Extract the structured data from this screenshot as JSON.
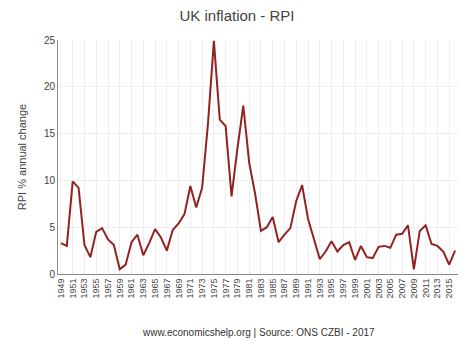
{
  "chart_data": {
    "type": "line",
    "title": "UK inflation - RPI",
    "ylabel": "RPI % annual change",
    "annotations": [
      "www.economicshelp.org | Source: ONS CZBI - 2017"
    ],
    "color": "#922222",
    "grid": true,
    "x": [
      1949,
      1950,
      1951,
      1952,
      1953,
      1954,
      1955,
      1956,
      1957,
      1958,
      1959,
      1960,
      1961,
      1962,
      1963,
      1964,
      1965,
      1966,
      1967,
      1968,
      1969,
      1970,
      1971,
      1972,
      1973,
      1974,
      1975,
      1976,
      1977,
      1978,
      1979,
      1980,
      1981,
      1982,
      1983,
      1984,
      1985,
      1986,
      1987,
      1988,
      1989,
      1990,
      1991,
      1992,
      1993,
      1994,
      1995,
      1996,
      1997,
      1998,
      1999,
      2000,
      2001,
      2002,
      2003,
      2004,
      2005,
      2006,
      2007,
      2008,
      2009,
      2010,
      2011,
      2012,
      2013,
      2014,
      2015,
      2016
    ],
    "values": [
      3.3,
      3.0,
      9.9,
      9.2,
      3.1,
      1.8,
      4.5,
      4.9,
      3.7,
      3.1,
      0.5,
      1.0,
      3.4,
      4.2,
      2.0,
      3.3,
      4.8,
      3.9,
      2.5,
      4.7,
      5.4,
      6.4,
      9.4,
      7.1,
      9.2,
      16.1,
      24.9,
      16.5,
      15.8,
      8.3,
      13.4,
      18.0,
      11.9,
      8.6,
      4.6,
      5.0,
      6.1,
      3.4,
      4.2,
      4.9,
      7.8,
      9.5,
      5.9,
      3.7,
      1.6,
      2.4,
      3.5,
      2.4,
      3.1,
      3.4,
      1.5,
      3.0,
      1.8,
      1.7,
      2.9,
      3.0,
      2.8,
      4.2,
      4.3,
      5.2,
      0.5,
      4.6,
      5.2,
      3.2,
      3.0,
      2.4,
      1.0,
      2.5
    ],
    "xlim": [
      1948.5,
      2016.5
    ],
    "xticks": [
      1949,
      1951,
      1953,
      1955,
      1957,
      1959,
      1961,
      1963,
      1965,
      1967,
      1969,
      1971,
      1973,
      1975,
      1977,
      1979,
      1981,
      1983,
      1985,
      1987,
      1989,
      1991,
      1993,
      1995,
      1997,
      1999,
      2001,
      2003,
      2005,
      2007,
      2009,
      2011,
      2013,
      2015
    ],
    "ylim": [
      0,
      25
    ],
    "yticks": [
      0,
      5,
      10,
      15,
      20,
      25
    ]
  }
}
